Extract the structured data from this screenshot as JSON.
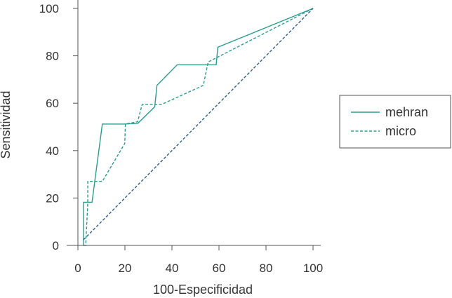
{
  "chart_data": {
    "type": "line",
    "title": "",
    "xlabel": "100-Especificidad",
    "ylabel": "Sensitividad",
    "xlim": [
      0,
      100
    ],
    "ylim": [
      0,
      100
    ],
    "xticks": [
      0,
      20,
      40,
      60,
      80,
      100
    ],
    "yticks": [
      0,
      20,
      40,
      60,
      80,
      100
    ],
    "grid": false,
    "legend_position": "right",
    "series": [
      {
        "name": "mehran",
        "style": "solid",
        "color": "#2a9d8f",
        "x": [
          2.4,
          2.4,
          3.3,
          6,
          10.4,
          19.6,
          25.5,
          32.7,
          33.6,
          42.2,
          58.8,
          59.5,
          100
        ],
        "y": [
          0,
          18.2,
          18.2,
          18.2,
          51.2,
          51.2,
          51.5,
          58.5,
          67.5,
          76.2,
          76.2,
          83.6,
          100
        ]
      },
      {
        "name": "micro",
        "style": "dashed",
        "color": "#2a9d8f",
        "x": [
          2.4,
          3.3,
          4.2,
          4.2,
          10.4,
          19.9,
          20.2,
          25.4,
          27.3,
          35.6,
          53.3,
          55.4,
          100
        ],
        "y": [
          0,
          0,
          18.2,
          27,
          27,
          43,
          51.2,
          52.2,
          59.5,
          59.5,
          67.5,
          77.4,
          100
        ]
      },
      {
        "name": "",
        "style": "dashed",
        "color": "#2e5e8e",
        "x": [
          2.4,
          100
        ],
        "y": [
          2.4,
          100
        ]
      }
    ]
  }
}
